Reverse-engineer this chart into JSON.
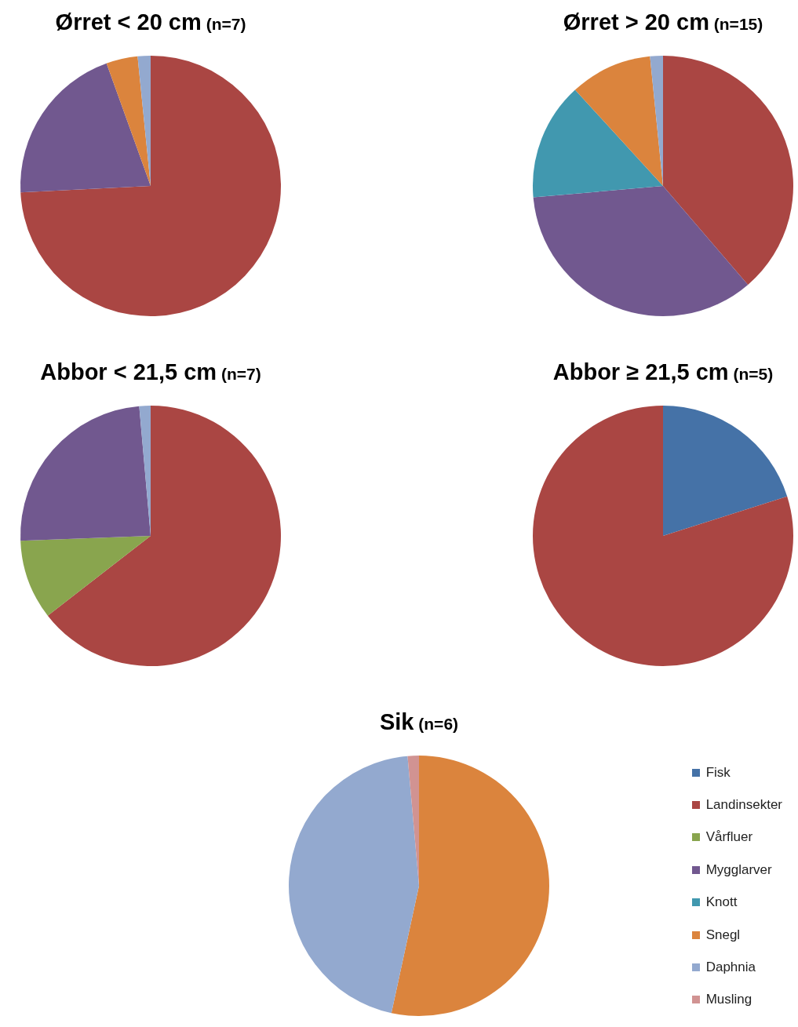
{
  "chart_data": [
    {
      "type": "pie",
      "title": "Ørret < 20 cm",
      "subtitle": "(n=7)",
      "categories": [
        null,
        null,
        null,
        null
      ],
      "values": [
        74.2,
        20.3,
        3.9,
        1.6
      ],
      "colors": [
        "#aa4643",
        "#71588f",
        "#db843d",
        "#93a9cf"
      ],
      "legend": false
    },
    {
      "type": "pie",
      "title": "Ørret > 20 cm",
      "subtitle": "(n=15)",
      "categories": [
        null,
        null,
        null,
        null,
        null
      ],
      "values": [
        38.7,
        34.9,
        14.6,
        10.2,
        1.6
      ],
      "colors": [
        "#aa4643",
        "#71588f",
        "#4198af",
        "#db843d",
        "#93a9cf"
      ],
      "legend": false
    },
    {
      "type": "pie",
      "title": "Abbor < 21,5 cm",
      "subtitle": "(n=7)",
      "categories": [
        null,
        null,
        null,
        null
      ],
      "values": [
        64.5,
        9.9,
        24.2,
        1.4
      ],
      "colors": [
        "#aa4643",
        "#89a54e",
        "#71588f",
        "#93a9cf"
      ],
      "legend": false
    },
    {
      "type": "pie",
      "title": "Abbor ≥ 21,5 cm",
      "subtitle": "(n=5)",
      "categories": [
        null,
        null
      ],
      "values": [
        20.1,
        79.9
      ],
      "colors": [
        "#4572a7",
        "#aa4643"
      ],
      "legend": false
    },
    {
      "type": "pie",
      "title": "Sik",
      "subtitle": "(n=6)",
      "categories": [
        "Fisk",
        "Landinsekter",
        "Vårfluer",
        "Mygglarver",
        "Knott",
        "Snegl",
        "Daphnia",
        "Musling"
      ],
      "values": [
        0,
        0,
        0,
        0,
        0,
        53.4,
        45.2,
        1.4
      ],
      "colors": [
        "#4572a7",
        "#aa4643",
        "#89a54e",
        "#71588f",
        "#4198af",
        "#db843d",
        "#93a9cf",
        "#d19392"
      ],
      "legend": "right"
    }
  ]
}
